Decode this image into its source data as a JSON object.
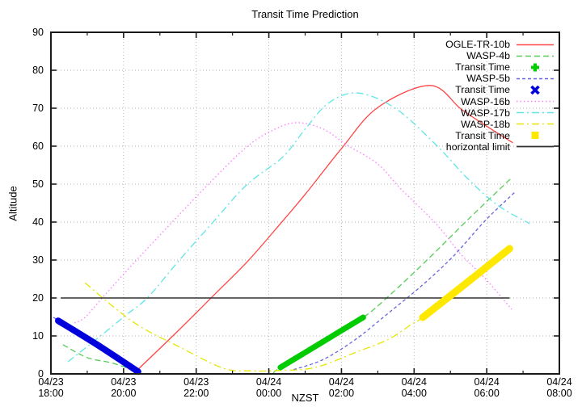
{
  "chart_data": {
    "type": "line",
    "title": "Transit Time Prediction",
    "xlabel": "NZST",
    "ylabel": "Altitude",
    "ylim": [
      0,
      90
    ],
    "xlim_hours": [
      0,
      14
    ],
    "grid": true,
    "legend_position": "top-right-inside",
    "y_major_ticks": [
      0,
      10,
      20,
      30,
      40,
      50,
      60,
      70,
      80,
      90
    ],
    "x_major_ticks": [
      {
        "hour": 0,
        "date": "04/23",
        "time": "18:00"
      },
      {
        "hour": 2,
        "date": "04/23",
        "time": "20:00"
      },
      {
        "hour": 4,
        "date": "04/23",
        "time": "22:00"
      },
      {
        "hour": 6,
        "date": "04/24",
        "time": "00:00"
      },
      {
        "hour": 8,
        "date": "04/24",
        "time": "02:00"
      },
      {
        "hour": 10,
        "date": "04/24",
        "time": "04:00"
      },
      {
        "hour": 12,
        "date": "04/24",
        "time": "06:00"
      },
      {
        "hour": 14,
        "date": "04/24",
        "time": "08:00"
      }
    ],
    "x_minor_step_hours": 1,
    "series": [
      {
        "id": "ogle_tr_10b",
        "name": "OGLE-TR-10b",
        "color": "#ff4545",
        "dash": "solid",
        "width": 1.3,
        "segments": [
          [
            [
              2.27,
              0
            ],
            [
              3.56,
              11.9
            ],
            [
              4.43,
              20.2
            ],
            [
              5.43,
              29.8
            ],
            [
              6.32,
              39.6
            ],
            [
              7.01,
              47.4
            ],
            [
              8.02,
              59.6
            ],
            [
              9.0,
              70.2
            ],
            [
              10.44,
              76.0
            ],
            [
              11.29,
              69.8
            ],
            [
              11.96,
              65.5
            ],
            [
              12.72,
              60.9
            ]
          ]
        ]
      },
      {
        "id": "wasp_4b",
        "name": "WASP-4b",
        "color": "#55cc55",
        "dash": "7,4",
        "width": 1.3,
        "segments": [
          [
            [
              0.33,
              7.7
            ],
            [
              1.0,
              4.3
            ],
            [
              1.71,
              2.8
            ],
            [
              2.43,
              0.4
            ]
          ],
          [
            [
              6.12,
              0.2
            ],
            [
              6.32,
              1.7
            ],
            [
              7.46,
              8.3
            ],
            [
              8.6,
              14.9
            ],
            [
              9.29,
              20.4
            ],
            [
              10.4,
              30.4
            ],
            [
              11.51,
              40.9
            ],
            [
              12.71,
              51.9
            ]
          ]
        ]
      },
      {
        "id": "wasp_5b",
        "name": "WASP-5b",
        "color": "#6666dd",
        "dash": "4,3",
        "width": 1.3,
        "segments": [
          [
            [
              0.07,
              14.9
            ],
            [
              1.27,
              7.7
            ],
            [
              2.45,
              0.2
            ]
          ],
          [
            [
              6.68,
              1.1
            ],
            [
              7.5,
              3.8
            ],
            [
              8.39,
              9.1
            ],
            [
              9.29,
              16.0
            ],
            [
              10.18,
              23.0
            ],
            [
              11.07,
              30.9
            ],
            [
              11.96,
              40.4
            ],
            [
              12.8,
              48.1
            ]
          ]
        ]
      },
      {
        "id": "wasp_16b",
        "name": "WASP-16b",
        "color": "#ff80ff",
        "dash": "1.5,3",
        "width": 1.4,
        "segments": [
          [
            [
              0.65,
              13.4
            ],
            [
              0.94,
              14.9
            ],
            [
              1.43,
              20.2
            ],
            [
              2.34,
              29.8
            ],
            [
              3.32,
              39.8
            ],
            [
              4.32,
              49.8
            ],
            [
              5.39,
              59.8
            ],
            [
              6.17,
              64.5
            ],
            [
              6.79,
              66.2
            ],
            [
              7.5,
              64.5
            ],
            [
              8.17,
              60.2
            ],
            [
              9.0,
              55.3
            ],
            [
              9.62,
              48.9
            ],
            [
              10.62,
              39.4
            ],
            [
              11.29,
              31.5
            ],
            [
              11.96,
              25.1
            ],
            [
              12.69,
              17.0
            ]
          ]
        ]
      },
      {
        "id": "wasp_17b",
        "name": "WASP-17b",
        "color": "#5fe5e5",
        "dash": "9,4,2,4",
        "width": 1.3,
        "segments": [
          [
            [
              0.47,
              3.2
            ],
            [
              1.34,
              9.8
            ],
            [
              2.07,
              15.5
            ],
            [
              2.67,
              20.2
            ],
            [
              3.54,
              30.0
            ],
            [
              4.45,
              39.8
            ],
            [
              5.39,
              49.8
            ],
            [
              6.39,
              57.2
            ],
            [
              7.0,
              64.5
            ],
            [
              7.66,
              71.5
            ],
            [
              8.46,
              74.0
            ],
            [
              9.51,
              69.8
            ],
            [
              10.62,
              60.2
            ],
            [
              11.45,
              51.7
            ],
            [
              12.29,
              44.5
            ],
            [
              13.18,
              39.6
            ]
          ]
        ]
      },
      {
        "id": "wasp_18b",
        "name": "WASP-18b",
        "color": "#e6e600",
        "dash": "9,4,2,4",
        "width": 1.3,
        "segments": [
          [
            [
              0.94,
              24.0
            ],
            [
              1.78,
              17.2
            ],
            [
              2.49,
              12.3
            ],
            [
              3.56,
              7.0
            ],
            [
              4.74,
              1.5
            ],
            [
              5.5,
              0.8
            ],
            [
              6.28,
              0.9
            ],
            [
              7.28,
              1.7
            ],
            [
              8.4,
              5.7
            ],
            [
              9.29,
              9.1
            ],
            [
              9.95,
              13.2
            ],
            [
              10.24,
              14.9
            ],
            [
              11.45,
              24.0
            ],
            [
              12.63,
              33.0
            ]
          ]
        ]
      }
    ],
    "transits": [
      {
        "id": "wasp_5b_transit",
        "planet": "WASP-5b",
        "label": "Transit Time",
        "color": "#0000dd",
        "width": 8,
        "points": [
          [
            0.2,
            14.0
          ],
          [
            1.27,
            7.7
          ],
          [
            2.4,
            0.6
          ]
        ]
      },
      {
        "id": "wasp_4b_transit",
        "planet": "WASP-4b",
        "label": "Transit Time",
        "color": "#00cc00",
        "width": 7,
        "points": [
          [
            6.32,
            1.7
          ],
          [
            7.46,
            8.3
          ],
          [
            8.6,
            14.9
          ]
        ]
      },
      {
        "id": "wasp_18b_transit",
        "planet": "WASP-18b",
        "label": "Transit Time",
        "color": "#ffe800",
        "width": 9,
        "points": [
          [
            10.24,
            14.9
          ],
          [
            11.45,
            24.0
          ],
          [
            12.63,
            33.0
          ]
        ]
      }
    ],
    "horizontal_limit": {
      "label": "horizontal limit",
      "altitude": 20,
      "x_range_hours": [
        0.27,
        12.63
      ],
      "color": "#303030",
      "width": 1.5
    },
    "legend": [
      {
        "label": "OGLE-TR-10b",
        "ref": "ogle_tr_10b",
        "sample": "line"
      },
      {
        "label": "WASP-4b",
        "ref": "wasp_4b",
        "sample": "line"
      },
      {
        "label": "Transit Time",
        "ref": "wasp_4b_transit",
        "sample": "plus-marker"
      },
      {
        "label": "WASP-5b",
        "ref": "wasp_5b",
        "sample": "line"
      },
      {
        "label": "Transit Time",
        "ref": "wasp_5b_transit",
        "sample": "x-marker"
      },
      {
        "label": "WASP-16b",
        "ref": "wasp_16b",
        "sample": "line"
      },
      {
        "label": "WASP-17b",
        "ref": "wasp_17b",
        "sample": "line"
      },
      {
        "label": "WASP-18b",
        "ref": "wasp_18b",
        "sample": "line"
      },
      {
        "label": "Transit Time",
        "ref": "wasp_18b_transit",
        "sample": "square-marker"
      },
      {
        "label": "horizontal limit",
        "ref": "horizontal_limit",
        "sample": "line"
      }
    ],
    "axis_color": "#1a1a1a",
    "grid_color": "#b3b3b3"
  }
}
